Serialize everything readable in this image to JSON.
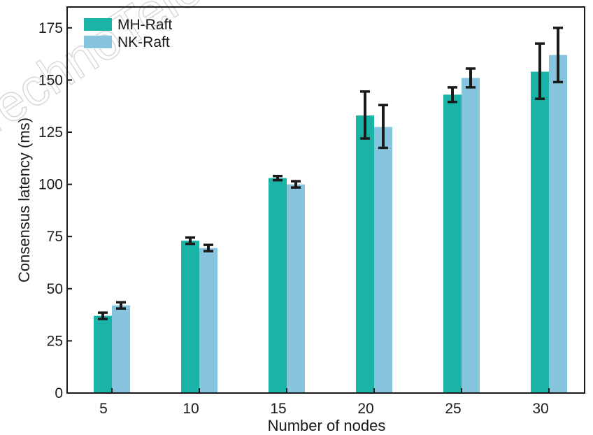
{
  "chart_data": {
    "type": "bar",
    "xlabel": "Number of nodes",
    "ylabel": "Consensus latency (ms)",
    "categories": [
      "5",
      "10",
      "15",
      "20",
      "25",
      "30"
    ],
    "ylim": [
      0,
      185
    ],
    "yticks": [
      0,
      25,
      50,
      75,
      100,
      125,
      150,
      175
    ],
    "grid": false,
    "legend_position": "top-left",
    "series": [
      {
        "name": "MH-Raft",
        "color": "#1ab3a8",
        "values": [
          37,
          73,
          103,
          133,
          143,
          154
        ],
        "error_low": [
          35.5,
          71.5,
          102,
          122,
          139.5,
          141
        ],
        "error_high": [
          38.5,
          74.5,
          104,
          144.5,
          146.5,
          167.5
        ]
      },
      {
        "name": "NK-Raft",
        "color": "#87c5df",
        "values": [
          42,
          69.5,
          100,
          127.5,
          151,
          162
        ],
        "error_low": [
          40.5,
          68,
          98.5,
          117.5,
          146.5,
          149
        ],
        "error_high": [
          43.5,
          71,
          101.5,
          138,
          155.5,
          175
        ]
      }
    ],
    "watermark": "TechnoTele"
  }
}
